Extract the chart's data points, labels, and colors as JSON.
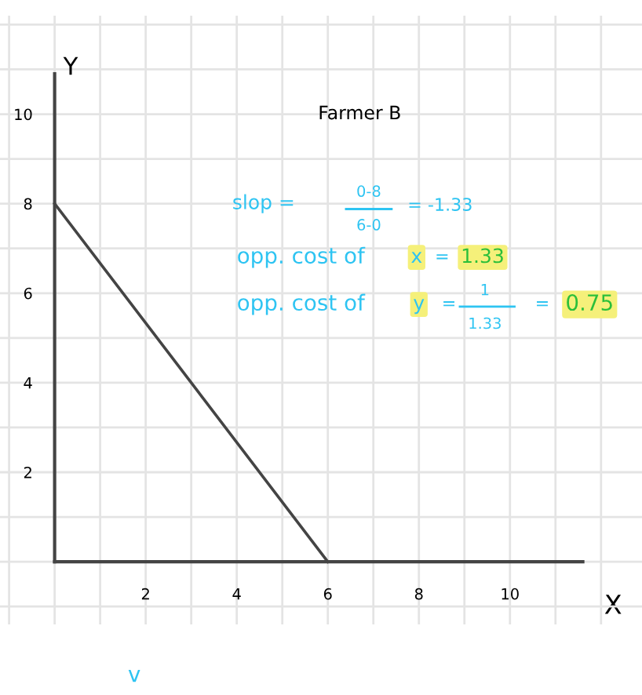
{
  "chart_data": {
    "type": "line",
    "title": "Farmer B",
    "xlabel": "X",
    "ylabel": "Y",
    "x": [
      0,
      6
    ],
    "series": [
      {
        "color": "#444444",
        "values": [
          8,
          0
        ]
      }
    ],
    "xlim": [
      -1.2,
      12.9
    ],
    "ylim": [
      -1.4,
      12.2
    ],
    "xticks": [
      {
        "value": -1,
        "label": null
      },
      {
        "value": 0,
        "label": null
      },
      {
        "value": 1,
        "label": null
      },
      2,
      {
        "value": 3,
        "label": null
      },
      4,
      {
        "value": 5,
        "label": null
      },
      6,
      {
        "value": 7,
        "label": null
      },
      8,
      {
        "value": 9,
        "label": null
      },
      10,
      {
        "value": 11,
        "label": null
      },
      {
        "value": 12,
        "label": null
      }
    ],
    "yticks": [
      {
        "value": -1,
        "label": null
      },
      {
        "value": 0,
        "label": null
      },
      {
        "value": 1,
        "label": null
      },
      2,
      {
        "value": 3,
        "label": null
      },
      4,
      {
        "value": 5,
        "label": null
      },
      6,
      {
        "value": 7,
        "label": null
      },
      8,
      {
        "value": 9,
        "label": null
      },
      10,
      {
        "value": 11,
        "label": null
      },
      {
        "value": 12,
        "label": null
      }
    ],
    "grid": true,
    "marker": "none",
    "line_style": "solid",
    "legend": false,
    "annotations": [
      "slop =",
      "0-8",
      "6-0",
      "= -1.33",
      "opp. cost of",
      "x",
      "= ",
      "1.33",
      "opp. cost of",
      "y",
      "=",
      "1",
      "1.33",
      "=",
      "0.75",
      "v"
    ]
  }
}
